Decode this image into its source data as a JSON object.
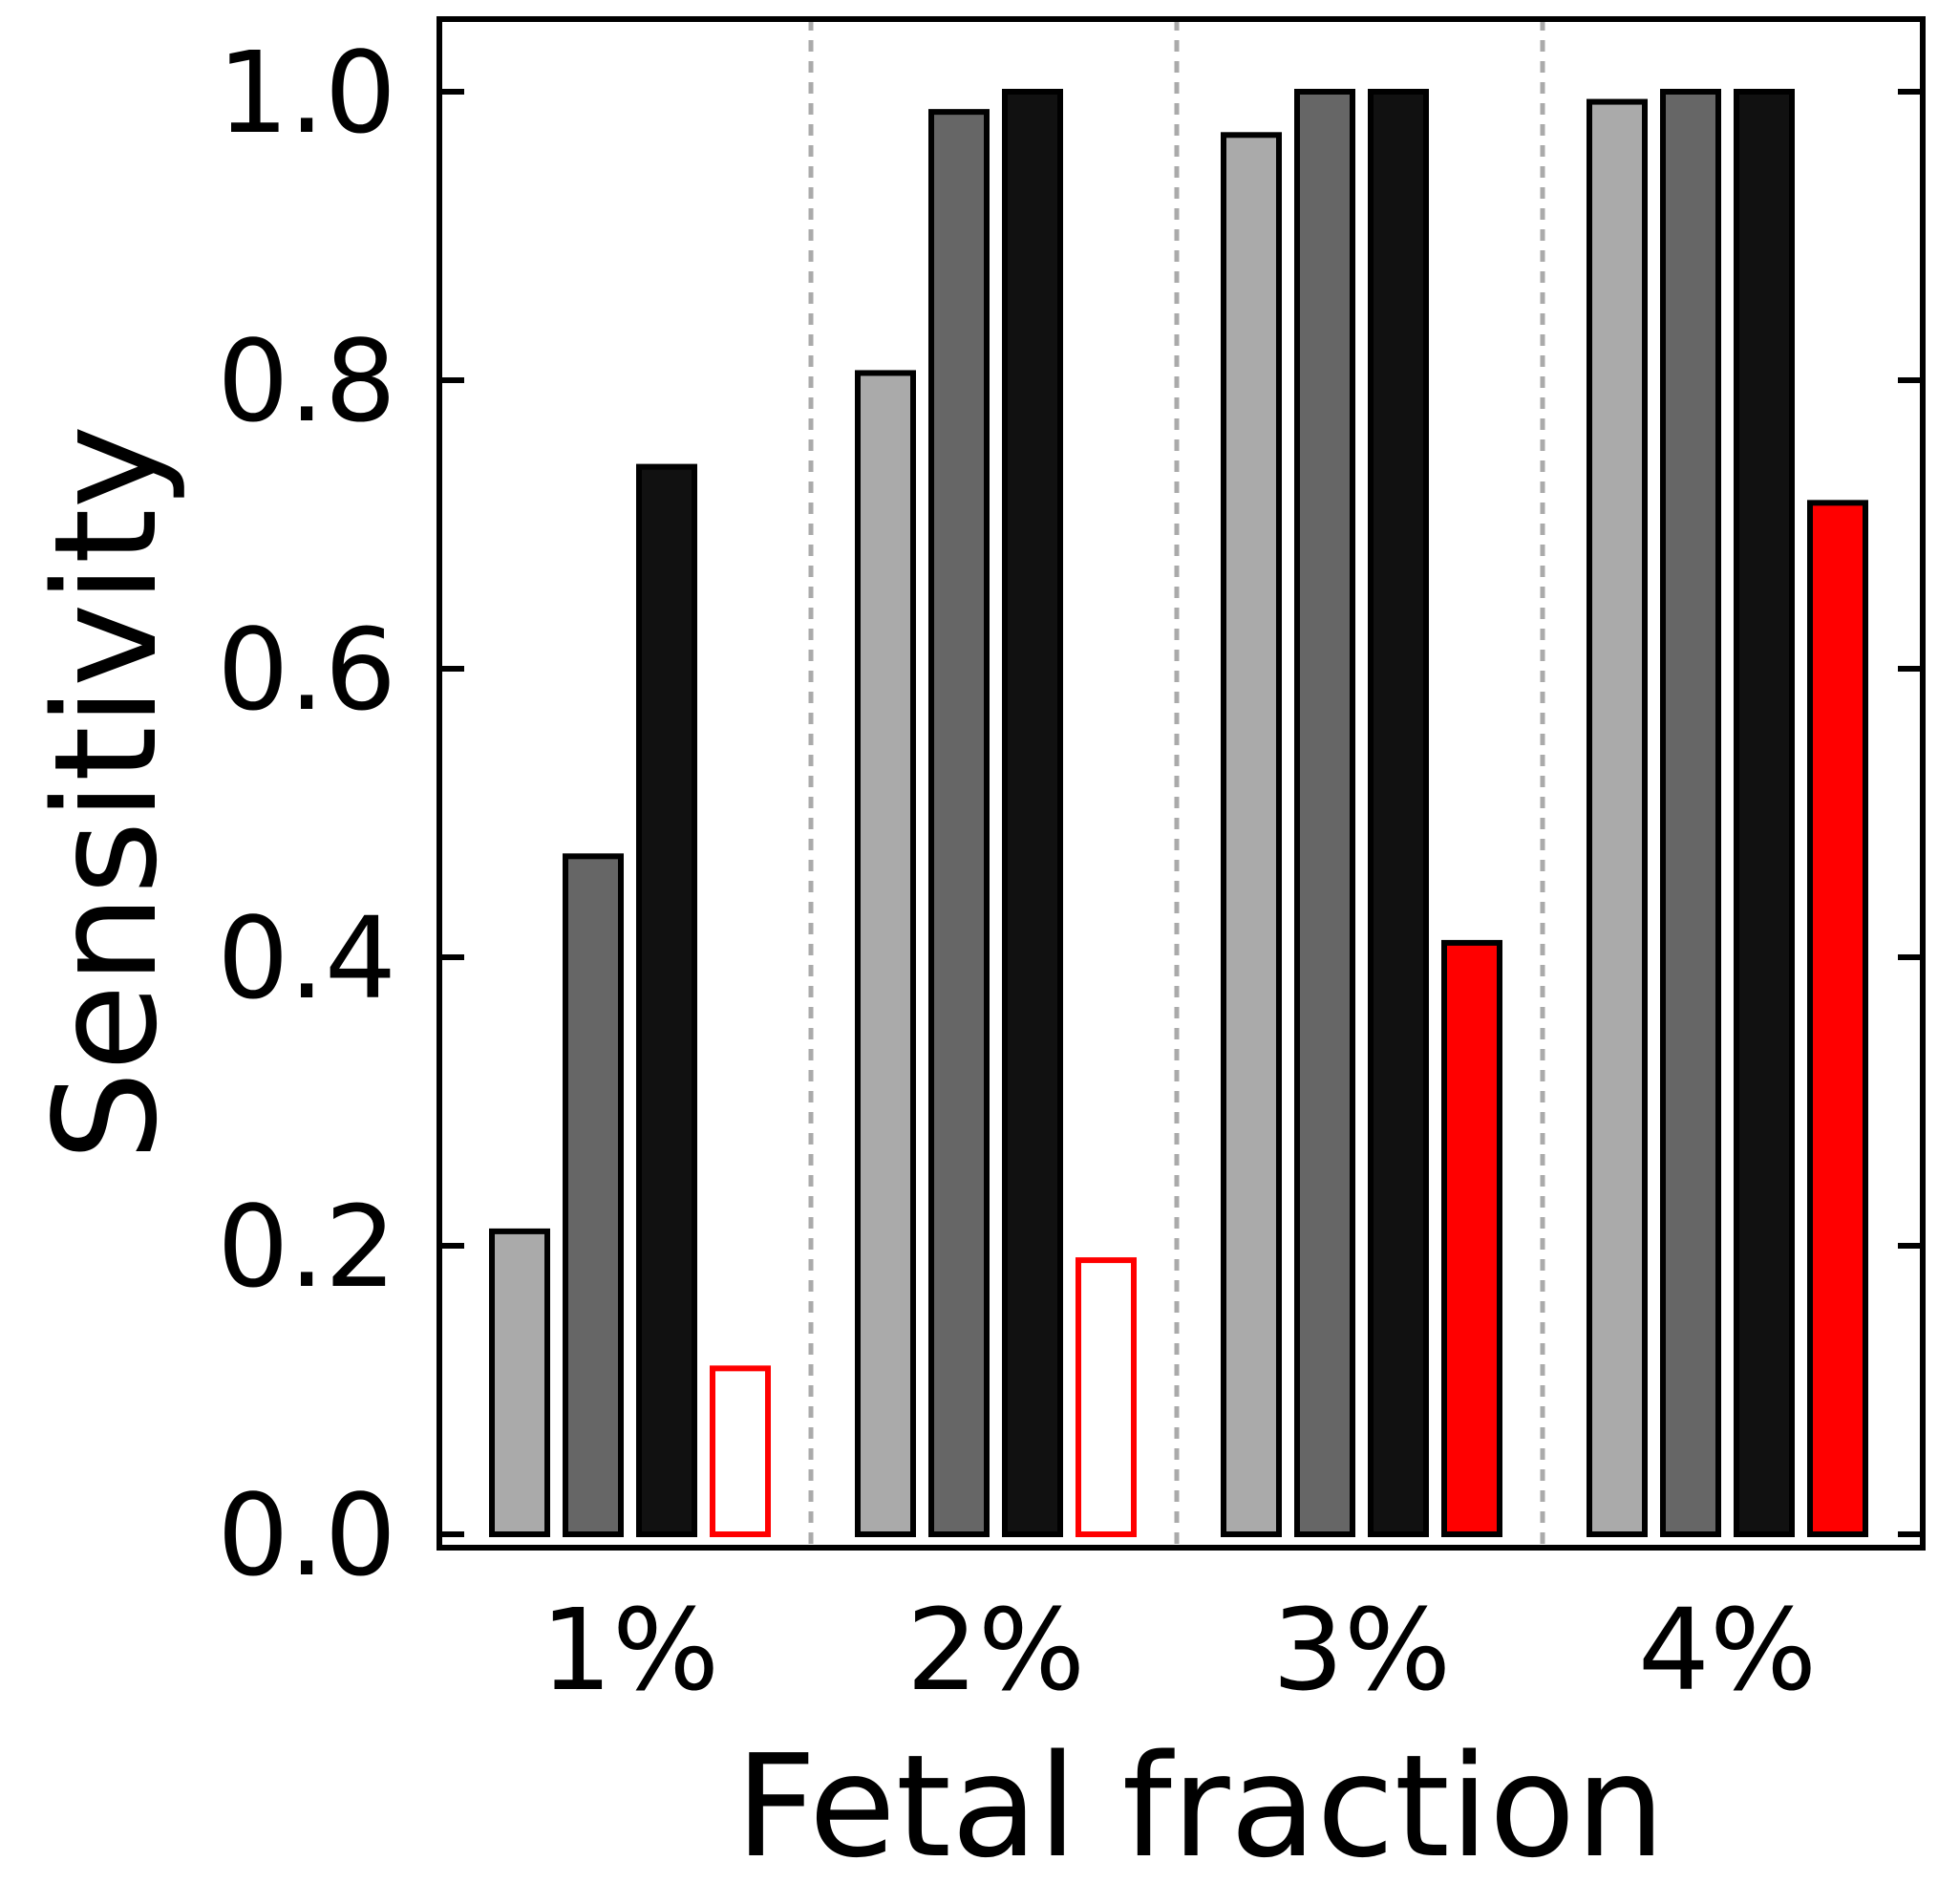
{
  "chart_data": {
    "type": "bar",
    "xlabel": "Fetal fraction",
    "ylabel": "Sensitivity",
    "categories": [
      "1%",
      "2%",
      "3%",
      "4%"
    ],
    "ylim": [
      0,
      1.05
    ],
    "yticks": [
      "0.0",
      "0.2",
      "0.4",
      "0.6",
      "0.8",
      "1.0"
    ],
    "separators": "dashed vertical lines between groups",
    "series": [
      {
        "values": [
          0.21,
          0.805,
          0.97,
          0.993
        ],
        "fill": "#aaaaaa",
        "stroke": "#000000"
      },
      {
        "values": [
          0.47,
          0.986,
          1.0,
          1.0
        ],
        "fill": "#666666",
        "stroke": "#000000"
      },
      {
        "values": [
          0.74,
          1.0,
          1.0,
          1.0
        ],
        "fill": "#111111",
        "stroke": "#000000"
      },
      {
        "values": [
          0.115,
          0.19,
          0.41,
          0.715
        ],
        "fills": [
          "#ffffff",
          "#ffffff",
          "#ff0000",
          "#ff0000"
        ],
        "strokes": [
          "#ff0000",
          "#ff0000",
          "#000000",
          "#000000"
        ]
      }
    ]
  }
}
